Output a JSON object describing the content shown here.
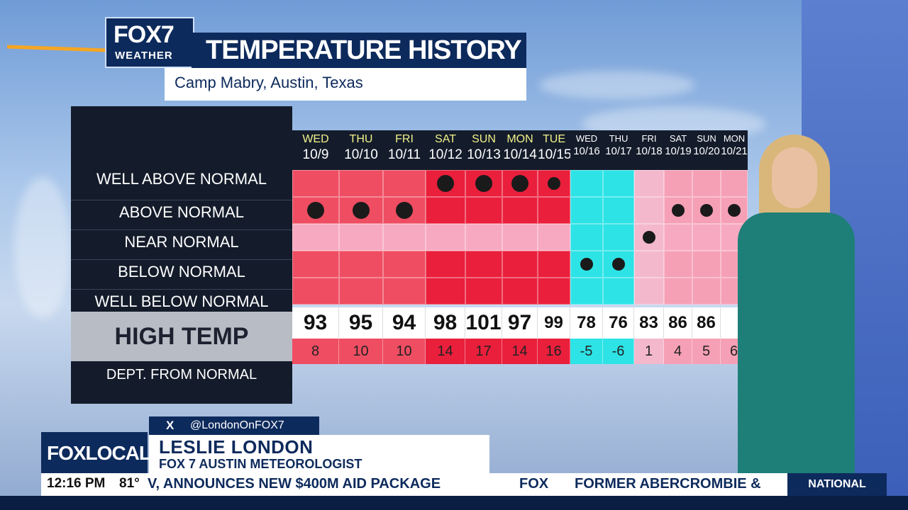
{
  "header": {
    "logo_main": "FOX7",
    "logo_sub": "WEATHER",
    "title": "TEMPERATURE HISTORY",
    "subtitle": "Camp Mabry, Austin, Texas"
  },
  "row_labels": {
    "well_above": "WELL ABOVE NORMAL",
    "above": "ABOVE NORMAL",
    "near": "NEAR NORMAL",
    "below": "BELOW NORMAL",
    "well_below": "WELL BELOW NORMAL",
    "high_temp": "HIGH TEMP",
    "dept": "DEPT. FROM NORMAL"
  },
  "days": [
    {
      "name": "WED",
      "date": "10/9",
      "high": "93",
      "dept": "8",
      "category": "above",
      "tone": "warm"
    },
    {
      "name": "THU",
      "date": "10/10",
      "high": "95",
      "dept": "10",
      "category": "above",
      "tone": "warm"
    },
    {
      "name": "FRI",
      "date": "10/11",
      "high": "94",
      "dept": "10",
      "category": "above",
      "tone": "warm"
    },
    {
      "name": "SAT",
      "date": "10/12",
      "high": "98",
      "dept": "14",
      "category": "well_above",
      "tone": "hot"
    },
    {
      "name": "SUN",
      "date": "10/13",
      "high": "101",
      "dept": "17",
      "category": "well_above",
      "tone": "hot"
    },
    {
      "name": "MON",
      "date": "10/14",
      "high": "97",
      "dept": "14",
      "category": "well_above",
      "tone": "hot"
    },
    {
      "name": "TUE",
      "date": "10/15",
      "high": "99",
      "dept": "16",
      "category": "well_above",
      "tone": "hot"
    },
    {
      "name": "WED",
      "date": "10/16",
      "high": "78",
      "dept": "-5",
      "category": "below",
      "tone": "cool"
    },
    {
      "name": "THU",
      "date": "10/17",
      "high": "76",
      "dept": "-6",
      "category": "below",
      "tone": "cool"
    },
    {
      "name": "FRI",
      "date": "10/18",
      "high": "83",
      "dept": "1",
      "category": "near",
      "tone": "mild"
    },
    {
      "name": "SAT",
      "date": "10/19",
      "high": "86",
      "dept": "4",
      "category": "above",
      "tone": "warmish"
    },
    {
      "name": "SUN",
      "date": "10/20",
      "high": "86",
      "dept": "5",
      "category": "above",
      "tone": "warmish"
    },
    {
      "name": "MON",
      "date": "10/21",
      "high": "",
      "dept": "6",
      "category": "above",
      "tone": "warmish"
    }
  ],
  "colors": {
    "warm": "#ef4d62",
    "hot": "#ea1f3c",
    "cool": "#2de3e6",
    "mild": "#f4b8cd",
    "warmish": "#f6a0b5",
    "near_band": "#f7a9c1"
  },
  "lower_third": {
    "x_icon": "x-logo-icon",
    "x_symbol": "X",
    "handle": "@LondonOnFOX7",
    "network": "FOXLOCAL",
    "name": "LESLIE LONDON",
    "role": "FOX 7 AUSTIN METEOROLOGIST"
  },
  "ticker": {
    "time": "12:16 PM",
    "temp": "81°",
    "headline1": "V, ANNOUNCES NEW $400M AID PACKAGE",
    "separator": "FOX",
    "headline2": "FORMER ABERCROMBIE &",
    "section": "NATIONAL"
  }
}
